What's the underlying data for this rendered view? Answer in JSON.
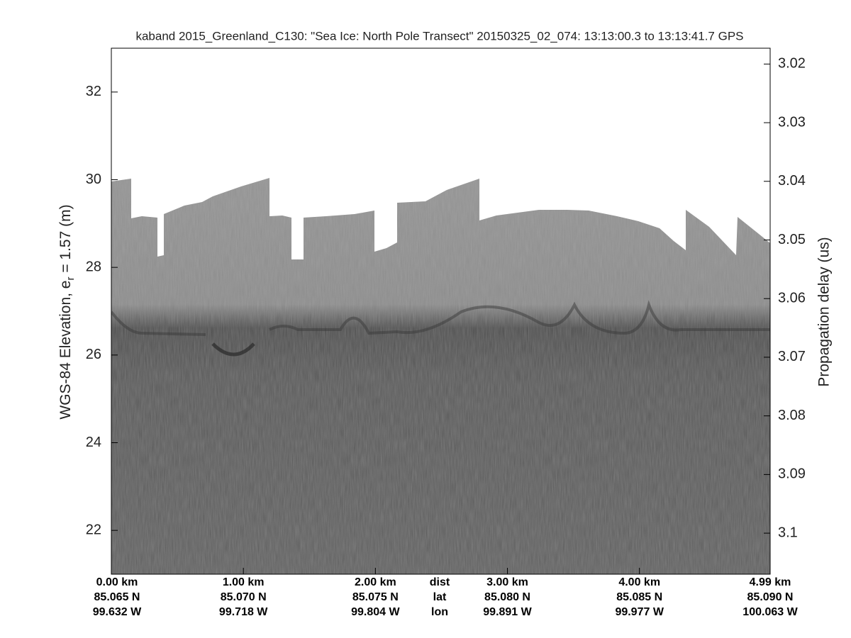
{
  "chart_data": {
    "type": "echogram",
    "title": "kaband 2015_Greenland_C130: \"Sea Ice: North Pole Transect\"  20150325_02_074: 13:13:00.3 to 13:13:41.7 GPS",
    "ylabel": {
      "text": "WGS-84 Elevation, e",
      "sub": "r",
      "rest": " = 1.57 (m)"
    },
    "y2label": "Propagation delay (us)",
    "ylim": [
      21,
      33
    ],
    "yticks": [
      22,
      24,
      26,
      28,
      30,
      32
    ],
    "y2lim": [
      3.0173,
      3.107
    ],
    "y2ticks": [
      3.02,
      3.03,
      3.04,
      3.05,
      3.06,
      3.07,
      3.08,
      3.09,
      3.1
    ],
    "xlim": [
      0,
      4.99
    ],
    "xticks": [
      {
        "value": 0,
        "label": "0.00 km"
      },
      {
        "value": 1,
        "label": "1.00 km"
      },
      {
        "value": 2,
        "label": "2.00 km"
      },
      {
        "value": 3,
        "label": "3.00 km"
      },
      {
        "value": 4,
        "label": "4.00 km"
      },
      {
        "value": 4.99,
        "label": "4.99 km"
      }
    ],
    "lat_labels": [
      "85.065 N",
      "85.070 N",
      "85.075 N",
      "85.080 N",
      "85.085 N",
      "85.090 N"
    ],
    "lon_labels": [
      "99.632 W",
      "99.718 W",
      "99.804 W",
      "99.891 W",
      "99.977 W",
      "100.063 W"
    ],
    "row_labels": [
      "dist",
      "lat",
      "lon"
    ]
  }
}
